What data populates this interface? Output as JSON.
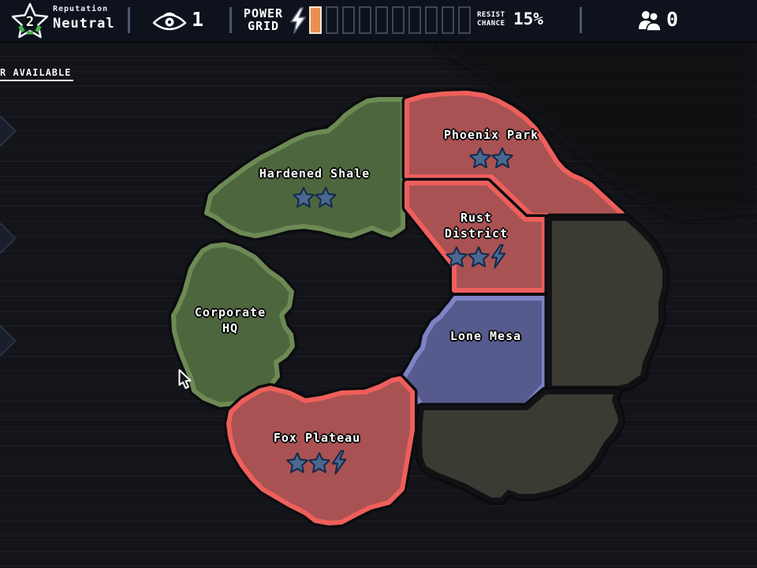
{
  "topbar": {
    "reputation_label": "Reputation",
    "reputation_value": "Neutral",
    "reputation_level": "2",
    "saucer_count": "1",
    "power_grid_line1": "POWER",
    "power_grid_line2": "GRID",
    "power_segments_total": 10,
    "power_segments_filled": 1,
    "resist_line1": "RESIST",
    "resist_line2": "CHANCE",
    "resist_value": "15%",
    "crew_count": "0"
  },
  "notice": {
    "label": "R AVAILABLE"
  },
  "map": {
    "faction_colors": {
      "green": {
        "fill": "#4e663e",
        "border": "#6d8a55"
      },
      "red": {
        "fill": "#a95253",
        "border": "#ee5f5b"
      },
      "blue": {
        "fill": "#565a8c",
        "border": "#7e83c6"
      },
      "gray": {
        "fill": "#3b3a33",
        "border": "#111214"
      }
    },
    "icon_colors": {
      "star_fill": "#4a6890",
      "star_outline": "#16294a",
      "power_segment_fill": "#e8914f"
    },
    "territories": [
      {
        "name": "Hardened Shale",
        "name_lines": [
          "Hardened Shale"
        ],
        "faction": "green",
        "stars": 2,
        "has_power": false
      },
      {
        "name": "Phoenix Park",
        "name_lines": [
          "Phoenix Park"
        ],
        "faction": "red",
        "stars": 2,
        "has_power": false
      },
      {
        "name": "Rust District",
        "name_lines": [
          "Rust",
          "District"
        ],
        "faction": "red",
        "stars": 2,
        "has_power": true
      },
      {
        "name": "Lone Mesa",
        "name_lines": [
          "Lone Mesa"
        ],
        "faction": "blue",
        "stars": 0,
        "has_power": false
      },
      {
        "name": "Corporate HQ",
        "name_lines": [
          "Corporate",
          "HQ"
        ],
        "faction": "green",
        "stars": 0,
        "has_power": false
      },
      {
        "name": "Fox Plateau",
        "name_lines": [
          "Fox Plateau"
        ],
        "faction": "red",
        "stars": 2,
        "has_power": true
      },
      {
        "name": "",
        "name_lines": [],
        "faction": "gray",
        "stars": 0,
        "has_power": false
      },
      {
        "name": "",
        "name_lines": [],
        "faction": "gray",
        "stars": 0,
        "has_power": false
      }
    ]
  }
}
